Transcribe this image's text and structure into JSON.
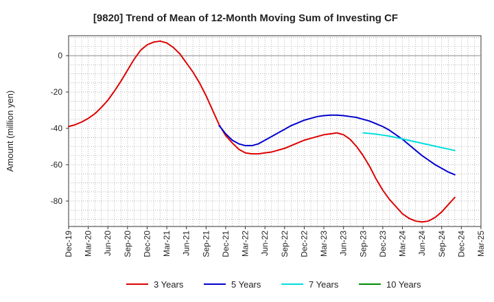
{
  "chart_data": {
    "type": "line",
    "title": "[9820]  Trend of Mean of 12-Month Moving Sum of Investing CF",
    "xlabel": "",
    "ylabel": "Amount (million yen)",
    "x_tick_labels": [
      "Dec-19",
      "Mar-20",
      "Jun-20",
      "Sep-20",
      "Dec-20",
      "Mar-21",
      "Jun-21",
      "Sep-21",
      "Dec-21",
      "Mar-22",
      "Jun-22",
      "Sep-22",
      "Dec-22",
      "Mar-23",
      "Jun-23",
      "Sep-23",
      "Dec-23",
      "Mar-24",
      "Jun-24",
      "Sep-24",
      "Dec-24",
      "Mar-25"
    ],
    "y_ticks": [
      0,
      -20,
      -40,
      -60,
      -80
    ],
    "y_tick_labels": [
      "0",
      "-20",
      "-40",
      "-60",
      "-80"
    ],
    "ylim": [
      -94,
      11
    ],
    "grid": true,
    "legend_position": "bottom",
    "series": [
      {
        "name": "3 Years",
        "color": "#dd0000",
        "values": [
          -39,
          -38,
          -36.5,
          -34.5,
          -32,
          -28.5,
          -24.5,
          -19.5,
          -14,
          -8,
          -2,
          3,
          6,
          7.5,
          8,
          7,
          4.5,
          1,
          -4,
          -9,
          -15,
          -22,
          -30,
          -38,
          -44,
          -48,
          -51.5,
          -53.5,
          -54,
          -54,
          -53.5,
          -53,
          -52,
          -51,
          -49.5,
          -48,
          -46.5,
          -45.5,
          -44.5,
          -43.5,
          -43,
          -42.5,
          -43.5,
          -46,
          -50,
          -55,
          -61,
          -68,
          -74,
          -79,
          -83,
          -87,
          -89.5,
          -91,
          -91.5,
          -91,
          -89,
          -86,
          -82,
          -78
        ]
      },
      {
        "name": "5 Years",
        "color": "#0000cc",
        "values": [
          null,
          null,
          null,
          null,
          null,
          null,
          null,
          null,
          null,
          null,
          null,
          null,
          null,
          null,
          null,
          null,
          null,
          null,
          null,
          null,
          null,
          null,
          null,
          -38.5,
          -43,
          -46.5,
          -48.5,
          -49.5,
          -49.5,
          -48.5,
          -46.5,
          -44.5,
          -42.5,
          -40.5,
          -38.5,
          -37,
          -35.5,
          -34.5,
          -33.5,
          -33,
          -32.7,
          -32.7,
          -33,
          -33.5,
          -34,
          -35,
          -36,
          -37.5,
          -39,
          -41,
          -43.5,
          -46,
          -49,
          -52,
          -55,
          -57.5,
          -60,
          -62,
          -64,
          -65.5
        ]
      },
      {
        "name": "7 Years",
        "color": "#00dddd",
        "values": [
          null,
          null,
          null,
          null,
          null,
          null,
          null,
          null,
          null,
          null,
          null,
          null,
          null,
          null,
          null,
          null,
          null,
          null,
          null,
          null,
          null,
          null,
          null,
          null,
          null,
          null,
          null,
          null,
          null,
          null,
          null,
          null,
          null,
          null,
          null,
          null,
          null,
          null,
          null,
          null,
          null,
          null,
          null,
          null,
          null,
          -42.5,
          -42.8,
          -43.2,
          -43.7,
          -44.3,
          -45,
          -45.8,
          -46.6,
          -47.4,
          -48.2,
          -49,
          -49.8,
          -50.6,
          -51.4,
          -52.2
        ]
      },
      {
        "name": "10 Years",
        "color": "#008800",
        "values": []
      }
    ]
  }
}
